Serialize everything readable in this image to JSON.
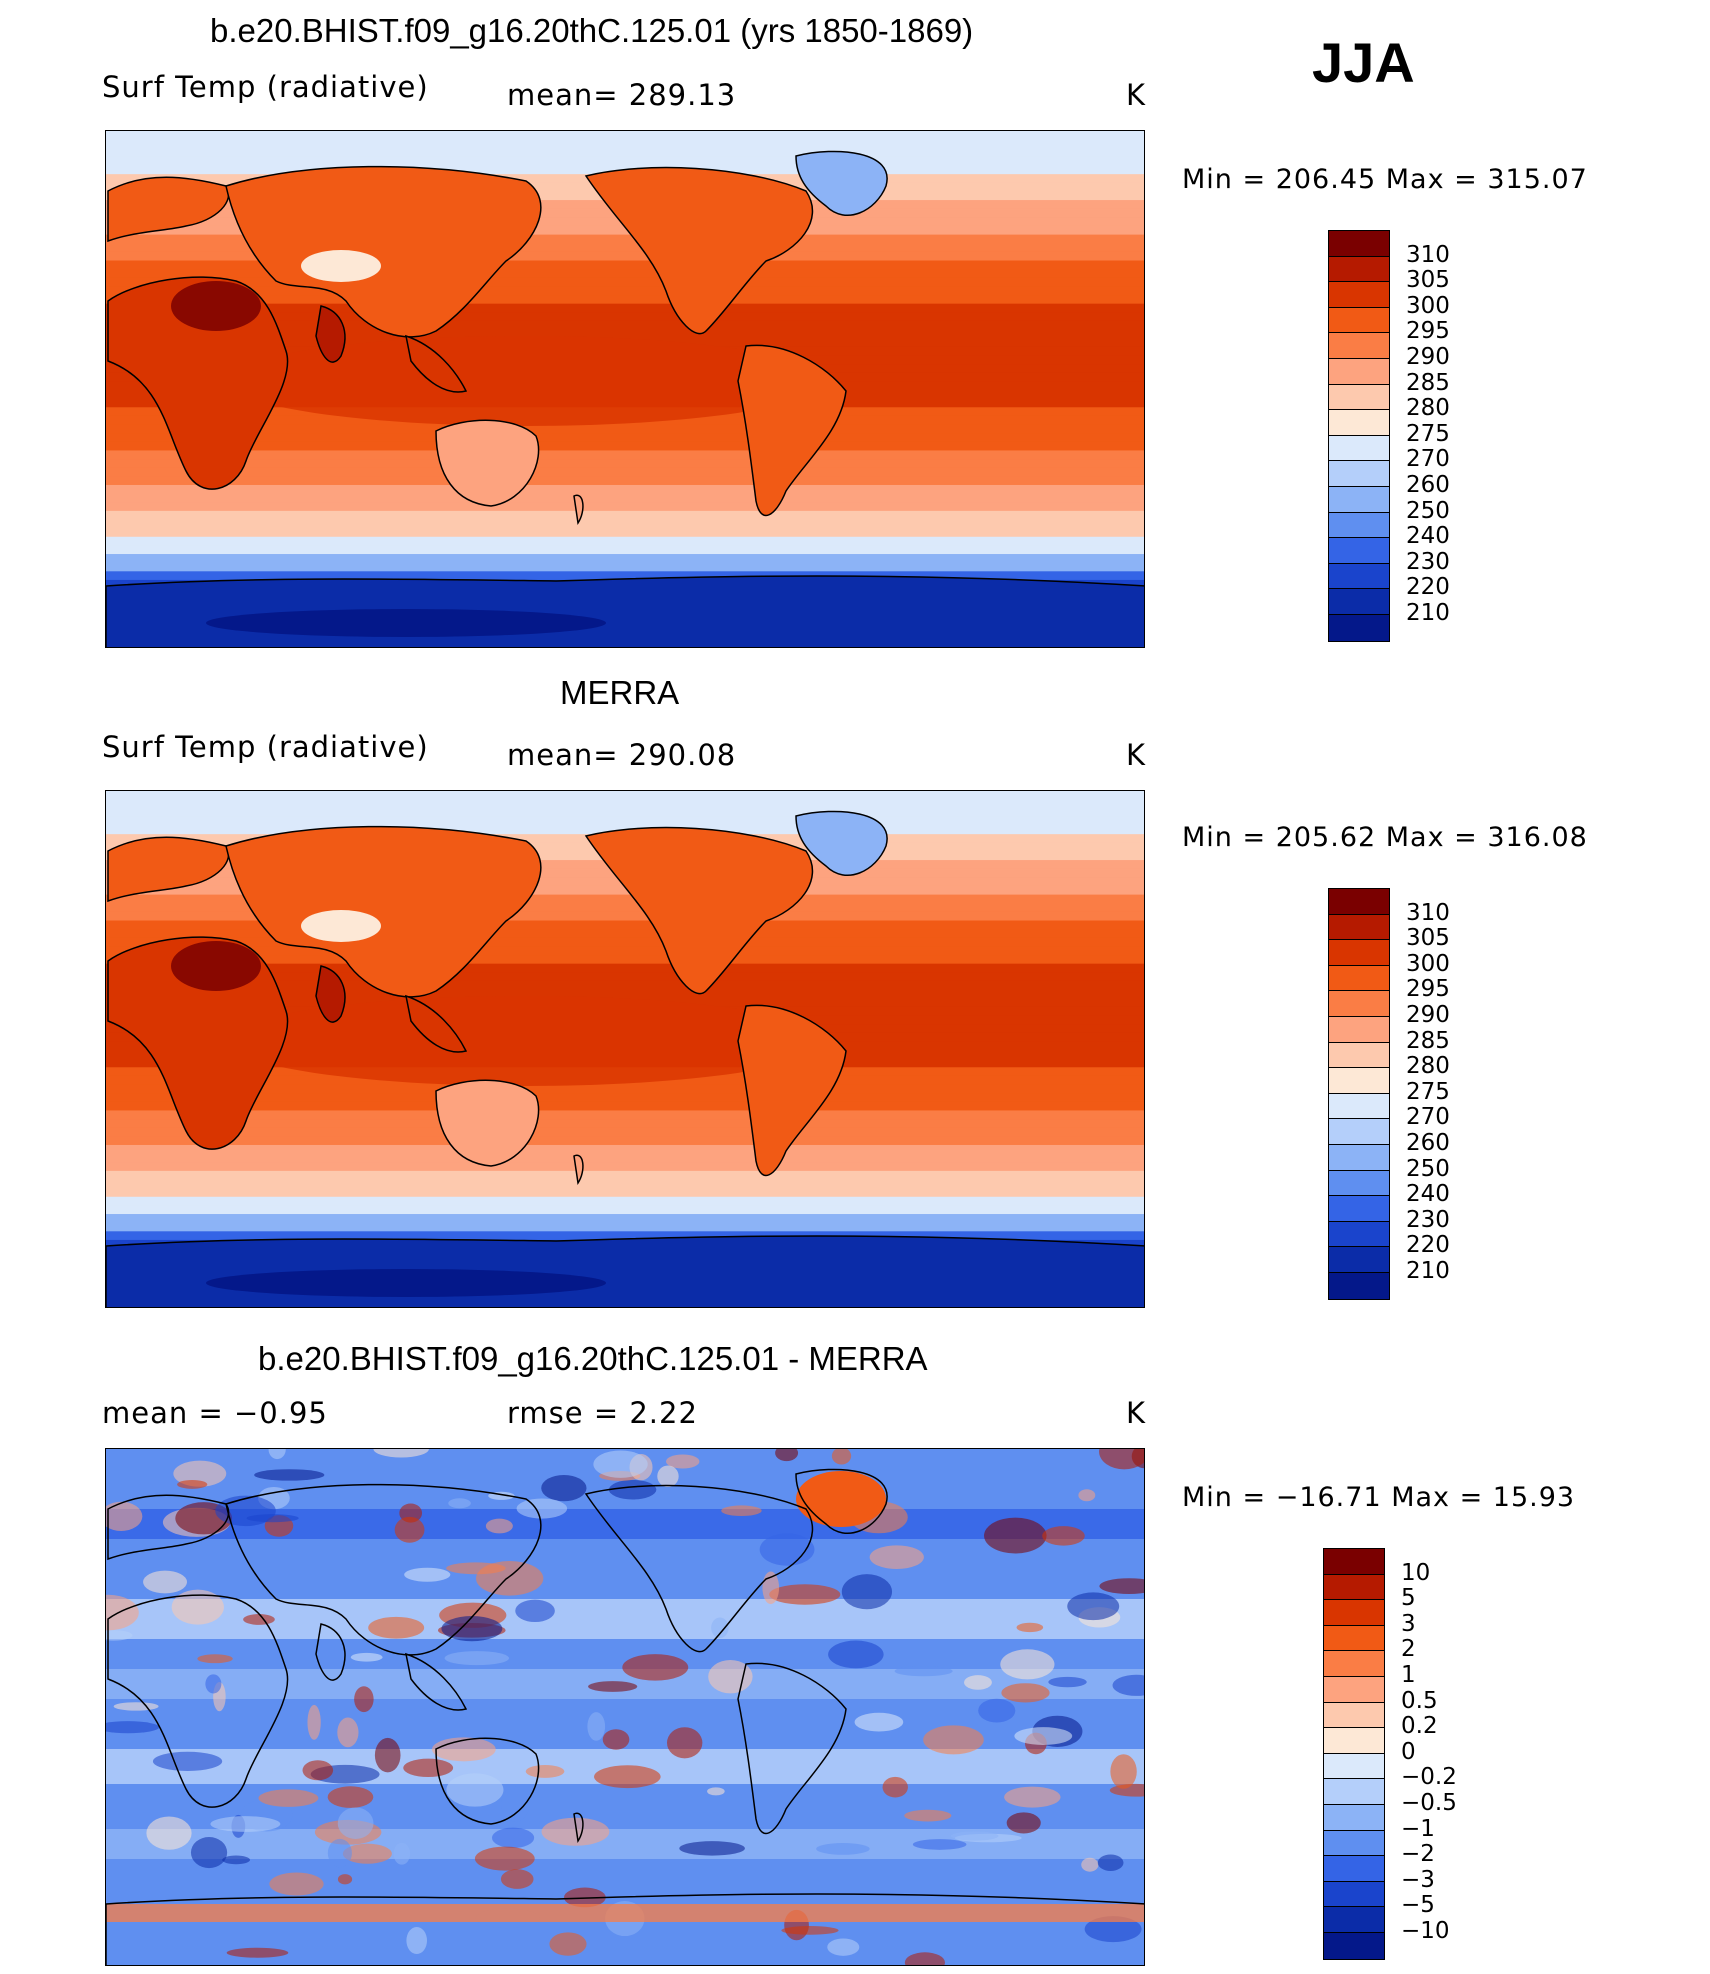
{
  "season": "JJA",
  "units": "K",
  "panels": [
    {
      "id": "model",
      "title": "b.e20.BHIST.f09_g16.20thC.125.01 (yrs 1850-1869)",
      "left_label": "Surf Temp (radiative)",
      "center_label": "mean= 289.13",
      "right_label": "K",
      "minmax": "Min = 206.45 Max = 315.07",
      "map_type": "temperature",
      "colorbar": {
        "levels": [
          "310",
          "305",
          "300",
          "295",
          "290",
          "285",
          "280",
          "275",
          "270",
          "260",
          "250",
          "240",
          "230",
          "220",
          "210"
        ],
        "colors": [
          "#7a0000",
          "#b51a00",
          "#d93500",
          "#f15a15",
          "#fa7d45",
          "#fda37f",
          "#fdc9ae",
          "#fde8d6",
          "#dbe9fb",
          "#b4cffa",
          "#8cb3f6",
          "#5f8ff0",
          "#3464e6",
          "#1a44cc",
          "#0b2ca8",
          "#04188a"
        ]
      }
    },
    {
      "id": "obs",
      "title": "MERRA",
      "left_label": "Surf Temp (radiative)",
      "center_label": "mean= 290.08",
      "right_label": "K",
      "minmax": "Min = 205.62 Max = 316.08",
      "map_type": "temperature",
      "colorbar": {
        "levels": [
          "310",
          "305",
          "300",
          "295",
          "290",
          "285",
          "280",
          "275",
          "270",
          "260",
          "250",
          "240",
          "230",
          "220",
          "210"
        ],
        "colors": [
          "#7a0000",
          "#b51a00",
          "#d93500",
          "#f15a15",
          "#fa7d45",
          "#fda37f",
          "#fdc9ae",
          "#fde8d6",
          "#dbe9fb",
          "#b4cffa",
          "#8cb3f6",
          "#5f8ff0",
          "#3464e6",
          "#1a44cc",
          "#0b2ca8",
          "#04188a"
        ]
      }
    },
    {
      "id": "diff",
      "title": "b.e20.BHIST.f09_g16.20thC.125.01 - MERRA",
      "left_label": "mean = −0.95",
      "center_label": "rmse = 2.22",
      "right_label": "K",
      "minmax": "Min = −16.71 Max = 15.93",
      "map_type": "difference",
      "colorbar": {
        "levels": [
          "10",
          "5",
          "3",
          "2",
          "1",
          "0.5",
          "0.2",
          "0",
          "−0.2",
          "−0.5",
          "−1",
          "−2",
          "−3",
          "−5",
          "−10"
        ],
        "colors": [
          "#7a0000",
          "#b51a00",
          "#d93500",
          "#f15a15",
          "#fa7d45",
          "#fda37f",
          "#fdc9ae",
          "#fde8d6",
          "#dbe9fb",
          "#b4cffa",
          "#8cb3f6",
          "#5f8ff0",
          "#3464e6",
          "#1a44cc",
          "#0b2ca8",
          "#04188a"
        ]
      }
    }
  ]
}
